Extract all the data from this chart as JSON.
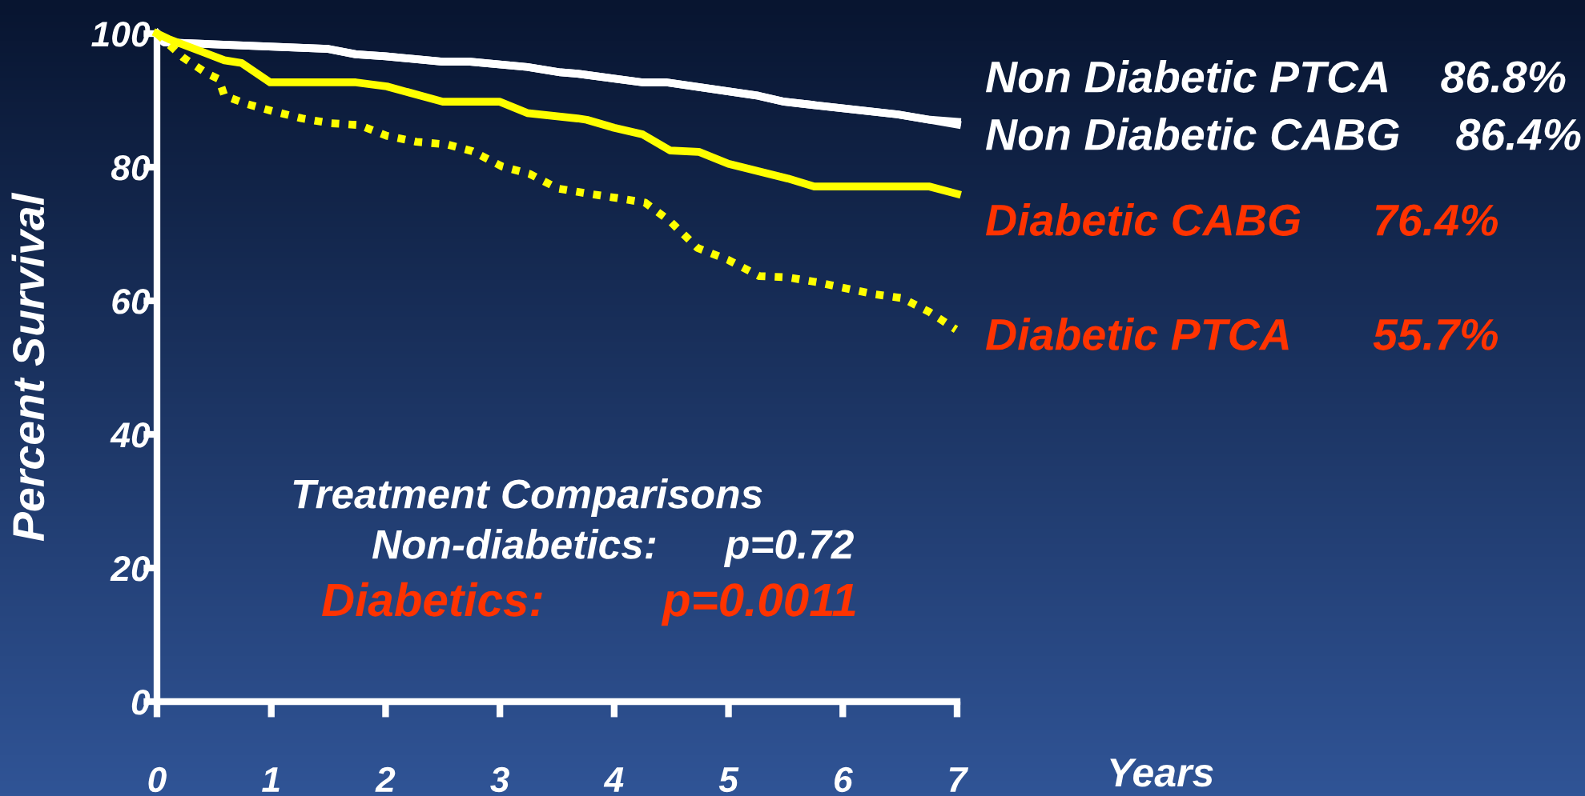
{
  "chart_data": {
    "type": "line",
    "xlabel": "Years",
    "ylabel": "Percent Survival",
    "xlim": [
      0,
      7
    ],
    "xticks": [
      0,
      1,
      2,
      3,
      4,
      5,
      6,
      7
    ],
    "ylim": [
      0,
      100
    ],
    "yticks": [
      0,
      20,
      40,
      60,
      80,
      100
    ],
    "grid": false,
    "legend": false,
    "marker": "none",
    "series": [
      {
        "color": "#ffffff",
        "line_style": "solid",
        "x": [
          0,
          0.06,
          1.5,
          1.74,
          2.0,
          2.5,
          2.74,
          3.24,
          3.53,
          3.68,
          4.25,
          4.46,
          5.26,
          5.49,
          6.48,
          6.76,
          7.0
        ],
        "values": [
          100,
          98.7,
          97.7,
          96.9,
          96.6,
          95.8,
          95.8,
          95.0,
          94.2,
          94.0,
          92.7,
          92.7,
          90.7,
          89.8,
          87.9,
          87.1,
          86.8
        ]
      },
      {
        "color": "#ffffff",
        "line_style": "solid",
        "x": [
          0,
          0.06,
          1.5,
          1.74,
          2.0,
          2.5,
          2.74,
          3.24,
          3.53,
          3.68,
          4.25,
          4.46,
          5.26,
          5.49,
          6.48,
          6.76,
          7.0
        ],
        "values": [
          100,
          98.7,
          97.7,
          96.9,
          96.6,
          95.8,
          95.8,
          95.0,
          94.2,
          94.0,
          92.7,
          92.7,
          90.7,
          89.8,
          87.9,
          87.1,
          86.4
        ]
      },
      {
        "color": "#ffff00",
        "line_style": "solid",
        "x": [
          0,
          0.1,
          0.59,
          0.74,
          0.99,
          1.74,
          2.01,
          2.5,
          3.0,
          3.24,
          3.68,
          3.76,
          4.0,
          4.25,
          4.49,
          4.74,
          5.0,
          5.52,
          5.75,
          6.76,
          7.0
        ],
        "values": [
          100,
          99.2,
          96.0,
          95.6,
          92.7,
          92.7,
          92.1,
          89.8,
          89.8,
          88.1,
          87.3,
          87.1,
          85.9,
          84.9,
          82.5,
          82.3,
          80.5,
          78.3,
          77.1,
          77.1,
          76.0
        ]
      },
      {
        "color": "#ffff00",
        "line_style": "dotted",
        "x": [
          0,
          0.23,
          0.44,
          0.54,
          0.59,
          0.78,
          1.01,
          1.27,
          1.51,
          1.77,
          2.01,
          2.27,
          2.54,
          2.76,
          3.02,
          3.26,
          3.51,
          3.79,
          4.02,
          4.27,
          4.49,
          4.73,
          5.0,
          5.27,
          5.52,
          5.77,
          6.02,
          6.27,
          6.52,
          6.76,
          6.99
        ],
        "values": [
          100,
          96.4,
          94.0,
          93.2,
          90.7,
          89.5,
          88.4,
          87.3,
          86.6,
          86.3,
          84.7,
          83.8,
          83.4,
          82.4,
          80.1,
          79.0,
          76.8,
          76.0,
          75.4,
          74.7,
          71.9,
          67.9,
          66.1,
          63.7,
          63.5,
          62.8,
          61.9,
          61.0,
          60.4,
          58.3,
          55.7
        ]
      }
    ],
    "annotations": [
      "Non Diabetic PTCA",
      "86.8%",
      "Non Diabetic CABG",
      "86.4%",
      "Diabetic CABG",
      "76.4%",
      "Diabetic PTCA",
      "55.7%",
      "Treatment Comparisons",
      "Non-diabetics:",
      "p=0.72",
      "Diabetics:",
      "p=0.0011"
    ]
  }
}
